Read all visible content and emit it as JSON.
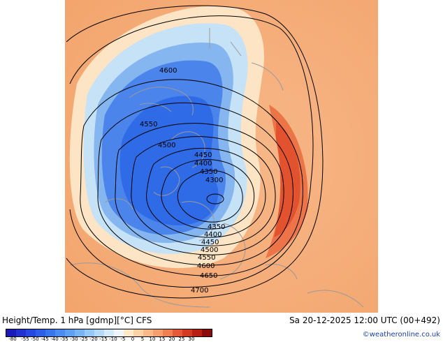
{
  "title": "Height/Temp. 1 hPa [gdmp][°C] CFS",
  "valid_time": "Sa 20-12-2025 12:00 UTC (00+492)",
  "credit": "©weatheronline.co.uk",
  "contour_labels": [
    "4300",
    "4350",
    "4400",
    "4450",
    "4500",
    "4550",
    "4600",
    "4650",
    "4700"
  ],
  "colorbar": {
    "ticks": [
      "-80",
      "-55",
      "-50",
      "-45",
      "-40",
      "-35",
      "-30",
      "-25",
      "-20",
      "-15",
      "-10",
      "-5",
      "0",
      "5",
      "10",
      "15",
      "20",
      "25",
      "30"
    ],
    "colors": [
      "#1a1ab8",
      "#1f32d0",
      "#2548e0",
      "#2c5fe8",
      "#3775ec",
      "#4a8cf0",
      "#5fa0f2",
      "#78b4f4",
      "#95c8f6",
      "#b4daf8",
      "#d2eaf9",
      "#eef5fb",
      "#fde9c8",
      "#fbd2a6",
      "#f8b88a",
      "#f59e6e",
      "#f08052",
      "#e55a36",
      "#d43a22",
      "#b81e14",
      "#8c0c0c"
    ]
  },
  "colors": {
    "background_warm": "#f6b27d",
    "cold_core": "#2f6be6",
    "contour": "#000000",
    "coast": "#9a9a9a"
  }
}
